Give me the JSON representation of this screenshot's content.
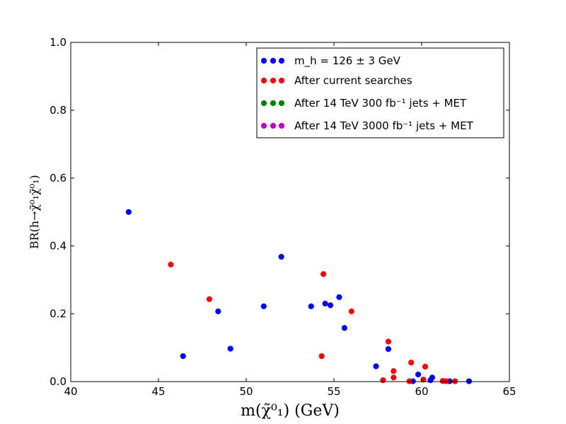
{
  "chart_data": {
    "type": "scatter",
    "xlabel": "m(χ̃⁰₁) (GeV)",
    "ylabel": "BR(h→χ̃⁰₁χ̃⁰₁)",
    "xlim": [
      40,
      65
    ],
    "ylim": [
      0.0,
      1.0
    ],
    "xticks": [
      "40",
      "45",
      "50",
      "55",
      "60",
      "65"
    ],
    "yticks": [
      "0.0",
      "0.2",
      "0.4",
      "0.6",
      "0.8",
      "1.0"
    ],
    "grid": false,
    "legend_position": "top-right",
    "series": [
      {
        "name": "m_h = 126 ± 3 GeV",
        "color": "#0000ff",
        "x": [
          43.3,
          46.4,
          48.4,
          49.1,
          51.0,
          52.0,
          53.7,
          54.5,
          54.8,
          55.3,
          55.6,
          57.4,
          58.1,
          59.5,
          59.8,
          60.5,
          60.6,
          61.6,
          62.7
        ],
        "y": [
          0.5,
          0.075,
          0.207,
          0.097,
          0.222,
          0.368,
          0.222,
          0.23,
          0.225,
          0.249,
          0.158,
          0.045,
          0.096,
          0.001,
          0.021,
          0.004,
          0.012,
          0.001,
          0.001
        ]
      },
      {
        "name": "After current searches",
        "color": "#ff0000",
        "x": [
          45.7,
          47.9,
          54.3,
          54.4,
          56.0,
          57.8,
          58.1,
          58.4,
          58.4,
          59.3,
          59.4,
          60.1,
          60.2,
          61.2,
          61.4,
          61.9
        ],
        "y": [
          0.345,
          0.243,
          0.075,
          0.317,
          0.207,
          0.004,
          0.118,
          0.031,
          0.012,
          0.001,
          0.056,
          0.006,
          0.044,
          0.002,
          0.001,
          0.001
        ]
      },
      {
        "name": "After 14 TeV 300 fb⁻¹ jets + MET",
        "color": "#008000",
        "x": [],
        "y": []
      },
      {
        "name": "After 14 TeV 3000 fb⁻¹ jets + MET",
        "color": "#bf00bf",
        "x": [],
        "y": []
      }
    ]
  }
}
